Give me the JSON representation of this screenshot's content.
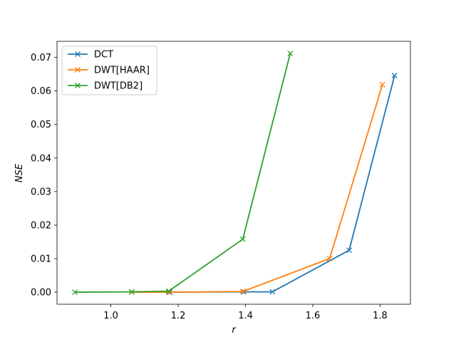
{
  "chart_data": {
    "type": "line",
    "title": "",
    "xlabel": "r",
    "ylabel": "NSE",
    "xlim": [
      0.84,
      1.89
    ],
    "ylim": [
      -0.0036,
      0.0748
    ],
    "xticks": [
      "1.0",
      "1.2",
      "1.4",
      "1.6",
      "1.8"
    ],
    "xtick_values": [
      1.0,
      1.2,
      1.4,
      1.6,
      1.8
    ],
    "yticks": [
      "0.00",
      "0.01",
      "0.02",
      "0.03",
      "0.04",
      "0.05",
      "0.06",
      "0.07"
    ],
    "ytick_values": [
      0.0,
      0.01,
      0.02,
      0.03,
      0.04,
      0.05,
      0.06,
      0.07
    ],
    "grid": false,
    "legend_position": "upper-left",
    "marker": "x",
    "series": [
      {
        "name": "DCT",
        "color": "#1f77b4",
        "x": [
          1.175,
          1.395,
          1.48,
          1.708,
          1.843
        ],
        "y": [
          0.0,
          0.0001,
          0.0001,
          0.0125,
          0.0646
        ]
      },
      {
        "name": "DWT[HAAR]",
        "color": "#ff7f0e",
        "x": [
          1.062,
          1.172,
          1.392,
          1.65,
          1.807
        ],
        "y": [
          0.0,
          0.0,
          0.0002,
          0.01,
          0.0619
        ]
      },
      {
        "name": "DWT[DB2]",
        "color": "#2ca02c",
        "x": [
          0.893,
          1.062,
          1.172,
          1.392,
          1.533
        ],
        "y": [
          0.0,
          0.0001,
          0.0003,
          0.0158,
          0.0712
        ]
      }
    ]
  }
}
